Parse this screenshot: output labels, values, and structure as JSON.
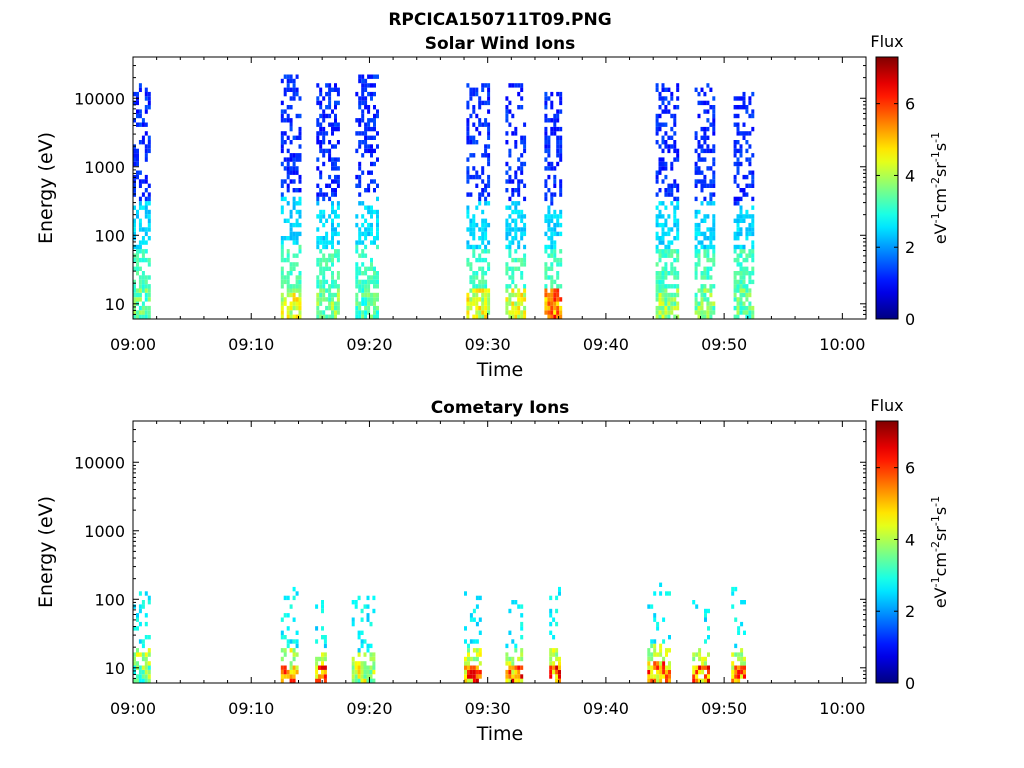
{
  "figure_title": "RPCICA150711T09.PNG",
  "chart_data": [
    {
      "type": "heatmap",
      "title": "Solar Wind Ions",
      "xlabel": "Time",
      "ylabel": "Energy (eV)",
      "x_ticks": [
        "09:00",
        "09:10",
        "09:20",
        "09:30",
        "09:40",
        "09:50",
        "10:00"
      ],
      "y_ticks": [
        "10",
        "100",
        "1000",
        "10000"
      ],
      "y_scale": "log",
      "y_range_eV": [
        6,
        40000
      ],
      "x_range": [
        "09:00",
        "10:02"
      ],
      "colorbar": {
        "label": "Flux",
        "unit": "eV-1cm-2sr-1s-1",
        "ticks": [
          "0",
          "2",
          "4",
          "6"
        ],
        "range": [
          0,
          7.3
        ]
      },
      "bursts": [
        {
          "start_min": 0.0,
          "end_min": 1.4,
          "peak_flux": 4.0,
          "max_energy_eV": 15000
        },
        {
          "start_min": 12.5,
          "end_min": 14.2,
          "peak_flux": 5.0,
          "max_energy_eV": 20000
        },
        {
          "start_min": 15.5,
          "end_min": 17.3,
          "peak_flux": 4.3,
          "max_energy_eV": 15000
        },
        {
          "start_min": 18.8,
          "end_min": 20.8,
          "peak_flux": 3.8,
          "max_energy_eV": 20000
        },
        {
          "start_min": 28.2,
          "end_min": 30.2,
          "peak_flux": 5.0,
          "max_energy_eV": 15000
        },
        {
          "start_min": 31.5,
          "end_min": 33.2,
          "peak_flux": 5.0,
          "max_energy_eV": 15000
        },
        {
          "start_min": 34.8,
          "end_min": 36.2,
          "peak_flux": 6.5,
          "max_energy_eV": 12000
        },
        {
          "start_min": 44.2,
          "end_min": 46.0,
          "peak_flux": 4.5,
          "max_energy_eV": 15000
        },
        {
          "start_min": 47.5,
          "end_min": 49.2,
          "peak_flux": 4.3,
          "max_energy_eV": 15000
        },
        {
          "start_min": 50.8,
          "end_min": 52.5,
          "peak_flux": 4.0,
          "max_energy_eV": 12000
        }
      ]
    },
    {
      "type": "heatmap",
      "title": "Cometary Ions",
      "xlabel": "Time",
      "ylabel": "Energy (eV)",
      "x_ticks": [
        "09:00",
        "09:10",
        "09:20",
        "09:30",
        "09:40",
        "09:50",
        "10:00"
      ],
      "y_ticks": [
        "10",
        "100",
        "1000",
        "10000"
      ],
      "y_scale": "log",
      "y_range_eV": [
        6,
        40000
      ],
      "x_range": [
        "09:00",
        "10:02"
      ],
      "colorbar": {
        "label": "Flux",
        "unit": "eV-1cm-2sr-1s-1",
        "ticks": [
          "0",
          "2",
          "4",
          "6"
        ],
        "range": [
          0,
          7.3
        ]
      },
      "bursts": [
        {
          "start_min": 0.0,
          "end_min": 1.3,
          "peak_flux": 4.5,
          "max_energy_eV": 120
        },
        {
          "start_min": 12.5,
          "end_min": 13.8,
          "peak_flux": 6.3,
          "max_energy_eV": 150
        },
        {
          "start_min": 15.4,
          "end_min": 16.3,
          "peak_flux": 6.8,
          "max_energy_eV": 100
        },
        {
          "start_min": 18.5,
          "end_min": 20.5,
          "peak_flux": 5.0,
          "max_energy_eV": 100
        },
        {
          "start_min": 28.0,
          "end_min": 29.5,
          "peak_flux": 6.8,
          "max_energy_eV": 120
        },
        {
          "start_min": 31.5,
          "end_min": 33.0,
          "peak_flux": 6.8,
          "max_energy_eV": 120
        },
        {
          "start_min": 35.2,
          "end_min": 36.0,
          "peak_flux": 7.0,
          "max_energy_eV": 150
        },
        {
          "start_min": 43.5,
          "end_min": 45.3,
          "peak_flux": 6.5,
          "max_energy_eV": 200
        },
        {
          "start_min": 47.3,
          "end_min": 48.8,
          "peak_flux": 6.8,
          "max_energy_eV": 150
        },
        {
          "start_min": 50.6,
          "end_min": 51.8,
          "peak_flux": 6.5,
          "max_energy_eV": 150
        }
      ]
    }
  ]
}
